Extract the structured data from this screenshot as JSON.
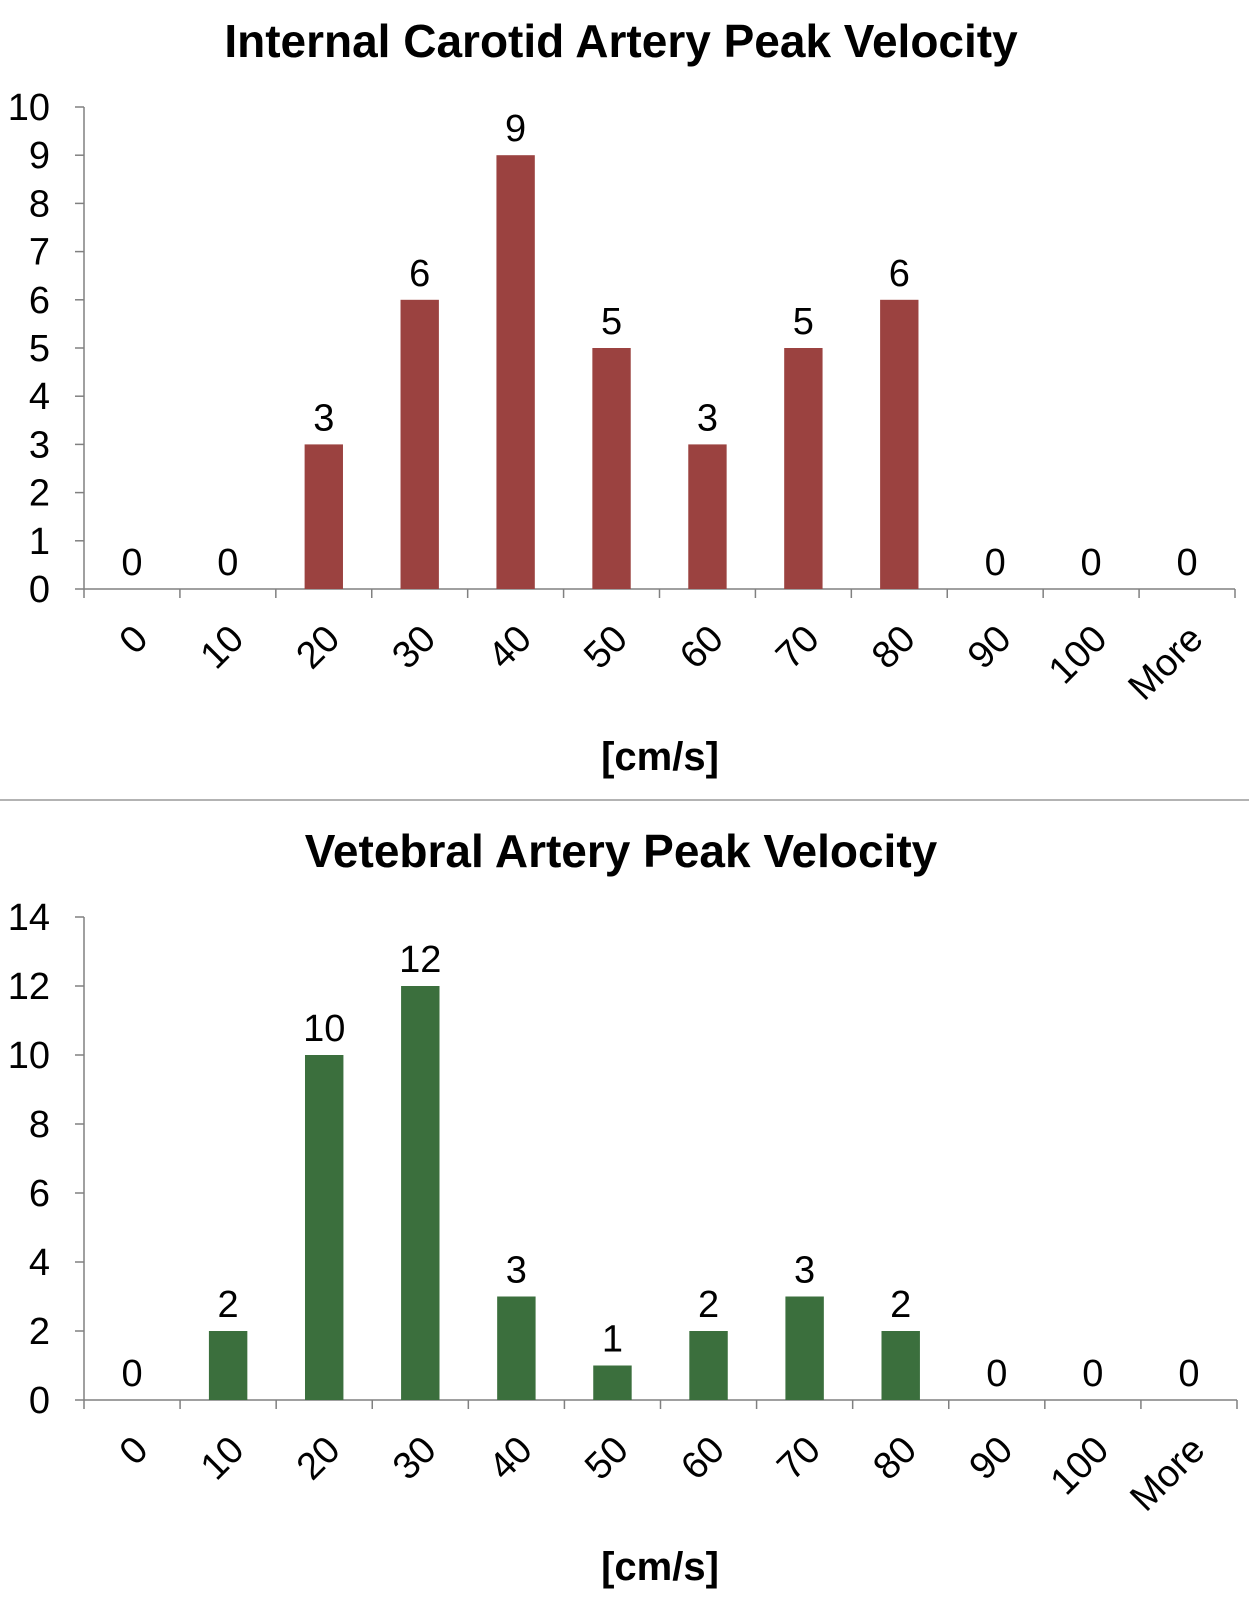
{
  "chart_data": [
    {
      "type": "bar",
      "title": "Internal Carotid Artery Peak Velocity",
      "xlabel": "[cm/s]",
      "ylabel": "",
      "categories": [
        "0",
        "10",
        "20",
        "30",
        "40",
        "50",
        "60",
        "70",
        "80",
        "90",
        "100",
        "More"
      ],
      "values": [
        0,
        0,
        3,
        6,
        9,
        5,
        3,
        5,
        6,
        0,
        0,
        0
      ],
      "ylim": [
        0,
        10
      ],
      "yticks": [
        0,
        1,
        2,
        3,
        4,
        5,
        6,
        7,
        8,
        9,
        10
      ],
      "bar_color": "#9b4240",
      "grid": false,
      "legend": "none"
    },
    {
      "type": "bar",
      "title": "Vetebral Artery Peak Velocity",
      "xlabel": "[cm/s]",
      "ylabel": "",
      "categories": [
        "0",
        "10",
        "20",
        "30",
        "40",
        "50",
        "60",
        "70",
        "80",
        "90",
        "100",
        "More"
      ],
      "values": [
        0,
        2,
        10,
        12,
        3,
        1,
        2,
        3,
        2,
        0,
        0,
        0
      ],
      "ylim": [
        0,
        14
      ],
      "yticks": [
        0,
        2,
        4,
        6,
        8,
        10,
        12,
        14
      ],
      "bar_color": "#3b6f3d",
      "grid": false,
      "legend": "none"
    }
  ]
}
